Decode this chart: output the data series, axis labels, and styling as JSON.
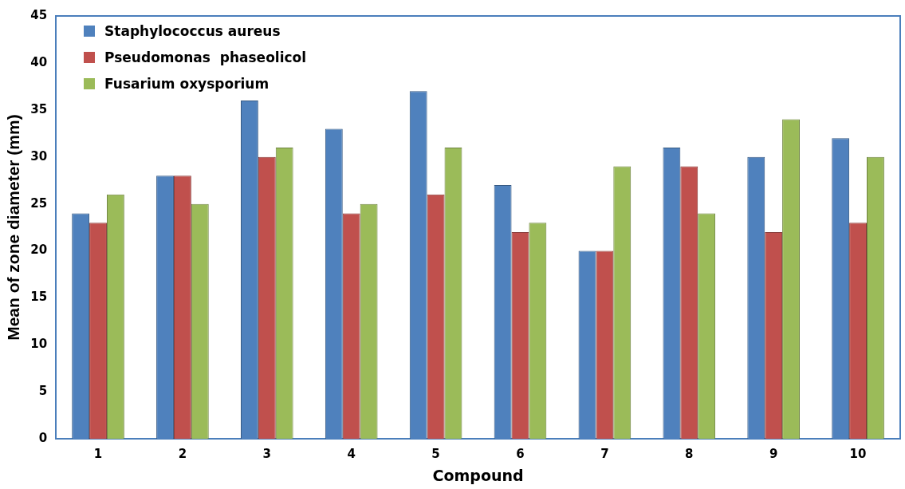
{
  "chart_data": {
    "type": "bar",
    "xlabel": "Compound",
    "ylabel": "Mean of zone diameter (mm)",
    "categories": [
      "1",
      "2",
      "3",
      "4",
      "5",
      "6",
      "7",
      "8",
      "9",
      "10"
    ],
    "series": [
      {
        "name": "Staphylococcus aureus",
        "color": "#4f81bd",
        "values": [
          24,
          28,
          36,
          33,
          37,
          27,
          20,
          31,
          30,
          32
        ]
      },
      {
        "name": "Pseudomonas  phaseolicol",
        "color": "#c0504d",
        "values": [
          23,
          28,
          30,
          24,
          26,
          22,
          20,
          29,
          22,
          23
        ]
      },
      {
        "name": "Fusarium oxysporium",
        "color": "#9bbb59",
        "values": [
          26,
          25,
          31,
          25,
          31,
          23,
          29,
          24,
          34,
          30
        ]
      }
    ],
    "ylim": [
      0,
      45
    ],
    "yticks": [
      0,
      5,
      10,
      15,
      20,
      25,
      30,
      35,
      40,
      45
    ],
    "grid": false,
    "legend": "top left"
  }
}
